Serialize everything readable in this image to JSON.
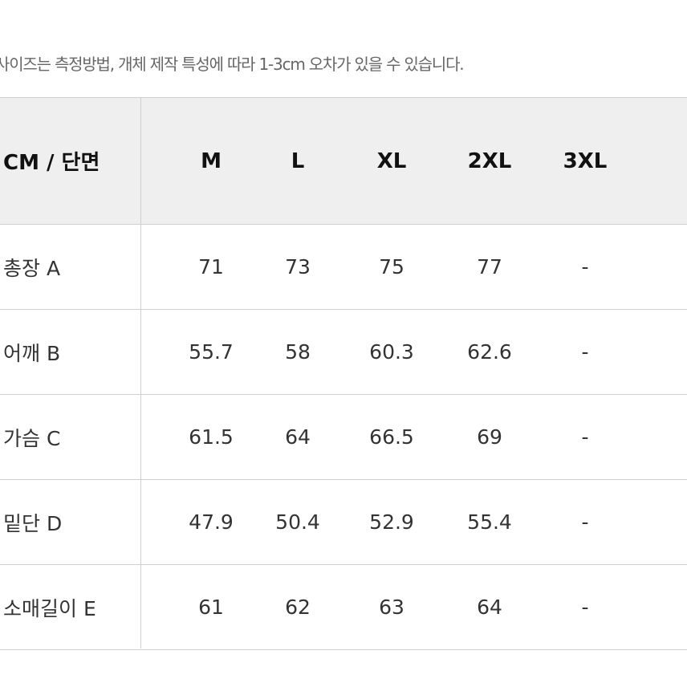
{
  "note": "사이즈는 측정방법, 개체 제작 특성에 따라 1-3cm 오차가 있을 수 있습니다.",
  "table": {
    "header": [
      "CM / 단면",
      "M",
      "L",
      "XL",
      "2XL",
      "3XL"
    ],
    "rows": [
      [
        "총장 A",
        "71",
        "73",
        "75",
        "77",
        "-"
      ],
      [
        "어깨 B",
        "55.7",
        "58",
        "60.3",
        "62.6",
        "-"
      ],
      [
        "가슴 C",
        "61.5",
        "64",
        "66.5",
        "69",
        "-"
      ],
      [
        "밑단 D",
        "47.9",
        "50.4",
        "52.9",
        "55.4",
        "-"
      ],
      [
        "소매길이 E",
        "61",
        "62",
        "63",
        "64",
        "-"
      ]
    ]
  }
}
